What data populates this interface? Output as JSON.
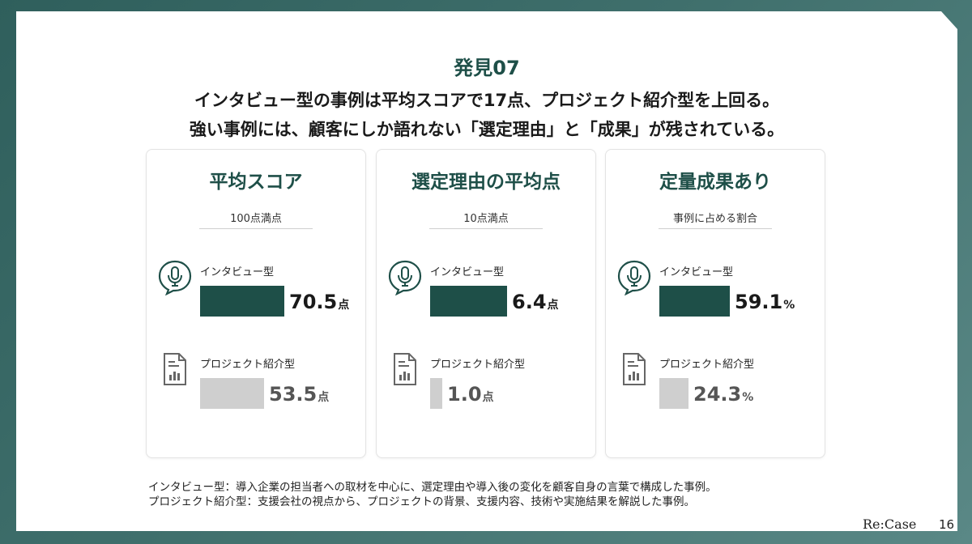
{
  "slide": {
    "finding_label": "発見07",
    "headline_line1": "インタビュー型の事例は平均スコアで17点、プロジェクト紹介型を上回る。",
    "headline_line2": "強い事例には、顧客にしか語れない「選定理由」と「成果」が残されている。",
    "notes": [
      "インタビュー型：導入企業の担当者への取材を中心に、選定理由や導入後の変化を顧客自身の言葉で構成した事例。",
      "プロジェクト紹介型：支援会社の視点から、プロジェクトの背景、支援内容、技術や実施結果を解説した事例。"
    ],
    "brand": "Re:Case",
    "page_number": "16"
  },
  "colors": {
    "accent": "#1e4f48",
    "secondary_bar": "#cfcfcf"
  },
  "icons": {
    "interview": "microphone-speech-bubble-icon",
    "project": "document-chart-icon"
  },
  "chart_data": [
    {
      "type": "bar",
      "title": "平均スコア",
      "subtitle": "100点満点",
      "categories": [
        "インタビュー型",
        "プロジェクト紹介型"
      ],
      "values": [
        70.5,
        53.5
      ],
      "display_values": [
        "70.5",
        "53.5"
      ],
      "unit": "点",
      "xlim": [
        0,
        100
      ]
    },
    {
      "type": "bar",
      "title": "選定理由の平均点",
      "subtitle": "10点満点",
      "categories": [
        "インタビュー型",
        "プロジェクト紹介型"
      ],
      "values": [
        6.4,
        1.0
      ],
      "display_values": [
        "6.4",
        "1.0"
      ],
      "unit": "点",
      "xlim": [
        0,
        10
      ]
    },
    {
      "type": "bar",
      "title": "定量成果あり",
      "subtitle": "事例に占める割合",
      "categories": [
        "インタビュー型",
        "プロジェクト紹介型"
      ],
      "values": [
        59.1,
        24.3
      ],
      "display_values": [
        "59.1",
        "24.3"
      ],
      "unit": "%",
      "xlim": [
        0,
        100
      ]
    }
  ]
}
